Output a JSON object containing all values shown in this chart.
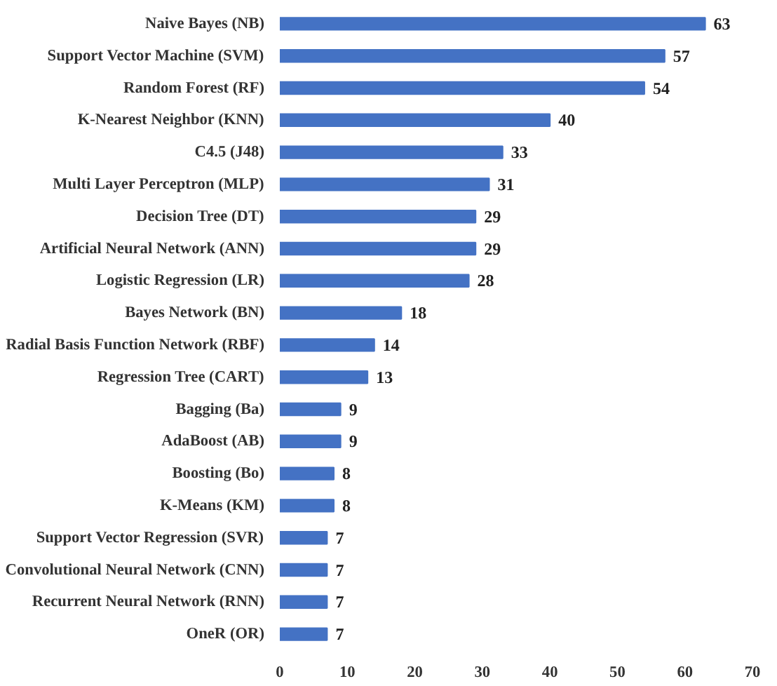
{
  "chart_data": {
    "type": "bar",
    "orientation": "horizontal",
    "categories": [
      "Naive Bayes (NB)",
      "Support Vector Machine (SVM)",
      "Random Forest (RF)",
      "K-Nearest Neighbor (KNN)",
      "C4.5 (J48)",
      "Multi Layer Perceptron (MLP)",
      "Decision Tree (DT)",
      "Artificial Neural Network (ANN)",
      "Logistic Regression (LR)",
      "Bayes Network (BN)",
      "Radial Basis Function Network (RBF)",
      "Regression Tree (CART)",
      "Bagging (Ba)",
      "AdaBoost (AB)",
      "Boosting (Bo)",
      "K-Means (KM)",
      "Support Vector Regression (SVR)",
      "Convolutional Neural Network (CNN)",
      "Recurrent Neural Network (RNN)",
      "OneR (OR)"
    ],
    "values": [
      63,
      57,
      54,
      40,
      33,
      31,
      29,
      29,
      28,
      18,
      14,
      13,
      9,
      9,
      8,
      8,
      7,
      7,
      7,
      7
    ],
    "color": "#4472c4",
    "data_labels": true,
    "grid": false,
    "xlim": [
      0,
      70
    ],
    "xticks": [
      0,
      10,
      20,
      30,
      40,
      50,
      60,
      70
    ]
  }
}
